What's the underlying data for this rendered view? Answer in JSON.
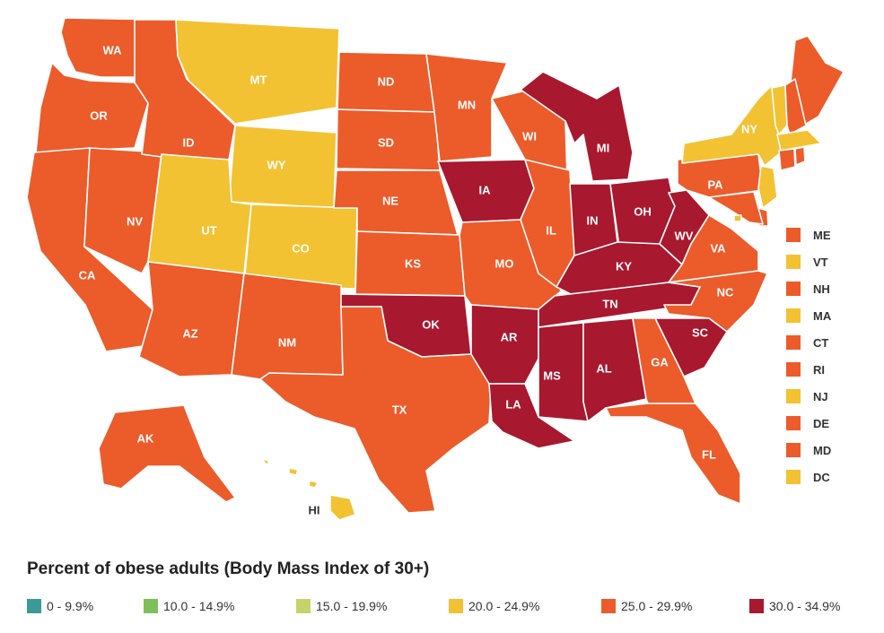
{
  "legend": {
    "title": "Percent of obese adults (Body Mass Index of 30+)",
    "classes": [
      {
        "label": "0 - 9.9%",
        "color": "#3a9a95"
      },
      {
        "label": "10.0 - 14.9%",
        "color": "#7fbf5a"
      },
      {
        "label": "15.0 - 19.9%",
        "color": "#c6d26a"
      },
      {
        "label": "20.0 - 24.9%",
        "color": "#f2c232"
      },
      {
        "label": "25.0 - 29.9%",
        "color": "#ec5b2a"
      },
      {
        "label": "30.0 - 34.9%",
        "color": "#a8182e"
      }
    ]
  },
  "states": {
    "WA": "25.0 - 29.9%",
    "OR": "25.0 - 29.9%",
    "CA": "25.0 - 29.9%",
    "NV": "25.0 - 29.9%",
    "ID": "25.0 - 29.9%",
    "MT": "20.0 - 24.9%",
    "WY": "20.0 - 24.9%",
    "UT": "20.0 - 24.9%",
    "CO": "20.0 - 24.9%",
    "AZ": "25.0 - 29.9%",
    "NM": "25.0 - 29.9%",
    "ND": "25.0 - 29.9%",
    "SD": "25.0 - 29.9%",
    "NE": "25.0 - 29.9%",
    "KS": "25.0 - 29.9%",
    "OK": "30.0 - 34.9%",
    "TX": "25.0 - 29.9%",
    "MN": "25.0 - 29.9%",
    "IA": "30.0 - 34.9%",
    "MO": "25.0 - 29.9%",
    "AR": "30.0 - 34.9%",
    "LA": "30.0 - 34.9%",
    "WI": "25.0 - 29.9%",
    "IL": "25.0 - 29.9%",
    "MI": "30.0 - 34.9%",
    "IN": "30.0 - 34.9%",
    "OH": "30.0 - 34.9%",
    "KY": "30.0 - 34.9%",
    "TN": "30.0 - 34.9%",
    "MS": "30.0 - 34.9%",
    "AL": "30.0 - 34.9%",
    "WV": "30.0 - 34.9%",
    "VA": "25.0 - 29.9%",
    "NC": "25.0 - 29.9%",
    "SC": "30.0 - 34.9%",
    "GA": "25.0 - 29.9%",
    "FL": "25.0 - 29.9%",
    "PA": "25.0 - 29.9%",
    "NY": "20.0 - 24.9%",
    "AK": "25.0 - 29.9%",
    "HI": "20.0 - 24.9%",
    "ME": "25.0 - 29.9%",
    "VT": "20.0 - 24.9%",
    "NH": "25.0 - 29.9%",
    "MA": "20.0 - 24.9%",
    "CT": "25.0 - 29.9%",
    "RI": "25.0 - 29.9%",
    "NJ": "20.0 - 24.9%",
    "DE": "25.0 - 29.9%",
    "MD": "25.0 - 29.9%",
    "DC": "20.0 - 24.9%"
  },
  "small_states": [
    "ME",
    "VT",
    "NH",
    "MA",
    "CT",
    "RI",
    "NJ",
    "DE",
    "MD",
    "DC"
  ]
}
